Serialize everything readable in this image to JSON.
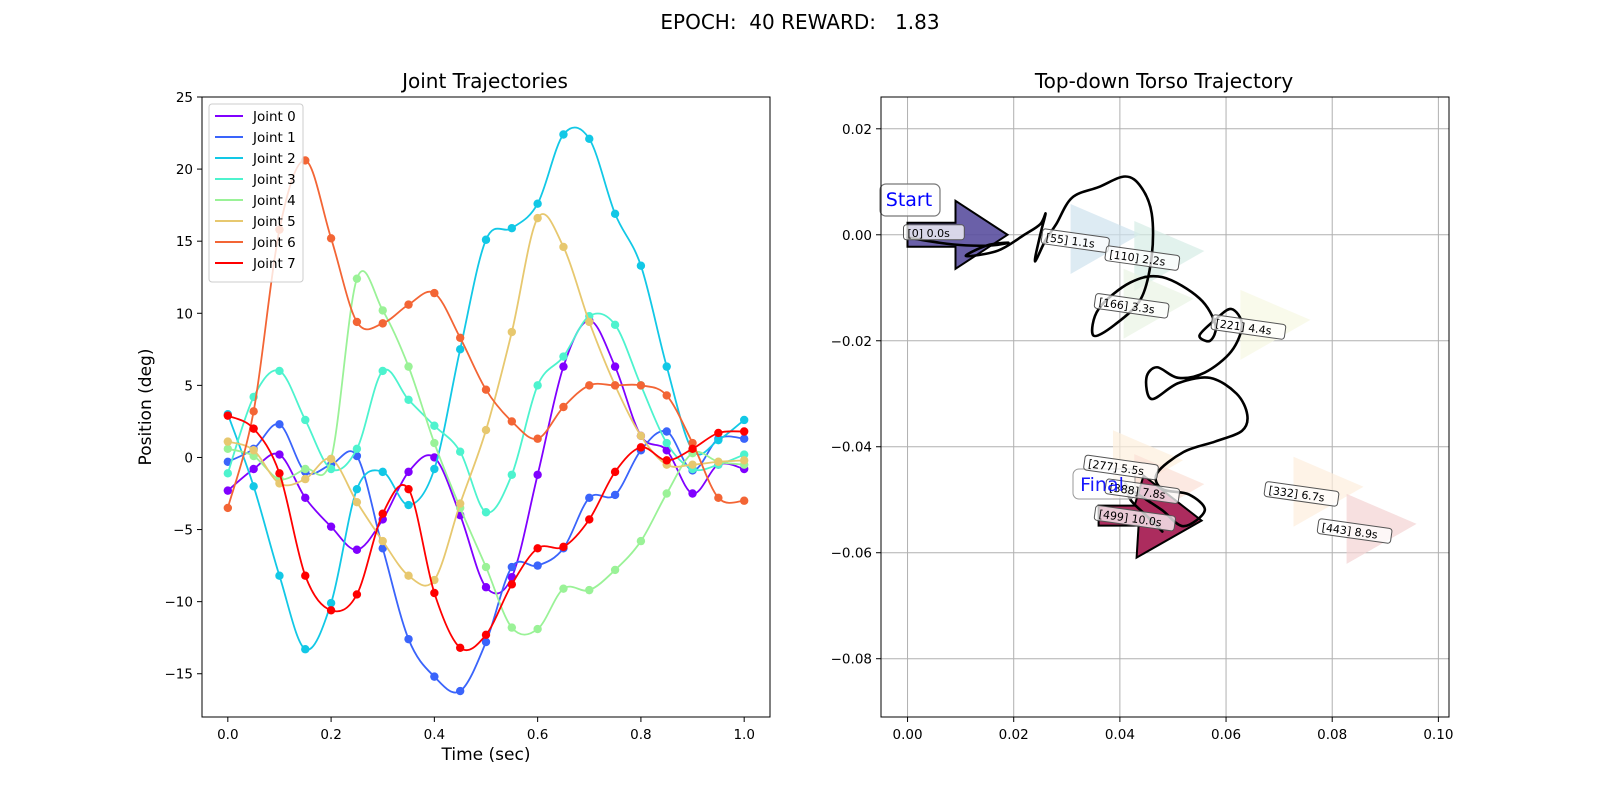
{
  "figure_title": "EPOCH:  40 REWARD:   1.83",
  "chart_data": [
    {
      "type": "line",
      "title": "Joint Trajectories",
      "xlabel": "Time (sec)",
      "ylabel": "Position (deg)",
      "xlim": [
        -0.05,
        1.05
      ],
      "ylim": [
        -18,
        25
      ],
      "x_ticks": [
        0.0,
        0.2,
        0.4,
        0.6,
        0.8,
        1.0
      ],
      "x_tick_labels": [
        "0.0",
        "0.2",
        "0.4",
        "0.6",
        "0.8",
        "1.0"
      ],
      "y_ticks": [
        -15,
        -10,
        -5,
        0,
        5,
        10,
        15,
        20,
        25
      ],
      "y_tick_labels": [
        "−15",
        "−10",
        "−5",
        "0",
        "5",
        "10",
        "15",
        "20",
        "25"
      ],
      "grid": false,
      "legend_position": "upper-left",
      "markers_x": [
        0.0,
        0.05,
        0.1,
        0.15,
        0.2,
        0.25,
        0.3,
        0.35,
        0.4,
        0.45,
        0.5,
        0.55,
        0.6,
        0.65,
        0.7,
        0.75,
        0.8,
        0.85,
        0.9,
        0.95,
        1.0
      ],
      "series": [
        {
          "name": "Joint 0",
          "color": "#8000ff",
          "values": [
            -2.3,
            -0.8,
            0.2,
            -2.8,
            -4.8,
            -6.4,
            -4.3,
            -1.0,
            0.0,
            -4.0,
            -9.0,
            -8.3,
            -1.2,
            6.3,
            9.5,
            6.3,
            1.5,
            0.5,
            -2.5,
            -0.5,
            -0.8
          ]
        },
        {
          "name": "Joint 1",
          "color": "#3a64fb",
          "values": [
            -0.3,
            0.6,
            2.3,
            -1.0,
            -0.5,
            0.1,
            -6.3,
            -12.6,
            -15.2,
            -16.2,
            -12.8,
            -7.6,
            -7.5,
            -6.3,
            -2.8,
            -2.6,
            0.5,
            1.8,
            -0.9,
            1.3,
            1.3
          ]
        },
        {
          "name": "Joint 2",
          "color": "#12c8e6",
          "values": [
            3.0,
            -2.0,
            -8.2,
            -13.3,
            -10.1,
            -2.2,
            -1.0,
            -3.3,
            -0.8,
            7.5,
            15.1,
            15.9,
            17.6,
            22.4,
            22.1,
            16.9,
            13.3,
            6.3,
            0.5,
            1.2,
            2.6
          ]
        },
        {
          "name": "Joint 3",
          "color": "#4df3ce",
          "values": [
            -1.1,
            4.2,
            6.0,
            2.6,
            -0.8,
            0.6,
            6.0,
            4.0,
            2.2,
            0.4,
            -3.8,
            -1.2,
            5.0,
            7.0,
            9.8,
            9.2,
            5.0,
            1.0,
            -0.8,
            -0.5,
            0.2
          ]
        },
        {
          "name": "Joint 4",
          "color": "#9af297",
          "values": [
            0.6,
            0.1,
            -1.5,
            -0.8,
            -0.1,
            12.4,
            10.2,
            6.3,
            1.0,
            -3.5,
            -7.6,
            -11.8,
            -11.9,
            -9.1,
            -9.2,
            -7.8,
            -5.8,
            -2.5,
            0.3,
            -0.3,
            -0.5
          ]
        },
        {
          "name": "Joint 5",
          "color": "#e7c86f",
          "values": [
            1.1,
            0.5,
            -1.8,
            -1.5,
            -0.1,
            -3.1,
            -5.8,
            -8.2,
            -8.5,
            -3.2,
            1.9,
            8.7,
            16.6,
            14.6,
            9.4,
            5.0,
            1.5,
            -0.5,
            -0.5,
            -0.3,
            -0.2
          ]
        },
        {
          "name": "Joint 6",
          "color": "#f36535",
          "values": [
            -3.5,
            3.2,
            15.8,
            20.6,
            15.2,
            9.4,
            9.3,
            10.6,
            11.4,
            8.3,
            4.7,
            2.5,
            1.3,
            3.5,
            5.0,
            5.0,
            5.0,
            4.3,
            1.0,
            -2.8,
            -3.0
          ]
        },
        {
          "name": "Joint 7",
          "color": "#ff0000",
          "values": [
            2.9,
            2.0,
            -1.1,
            -8.2,
            -10.6,
            -9.5,
            -3.9,
            -2.2,
            -9.4,
            -13.2,
            -12.3,
            -8.8,
            -6.3,
            -6.2,
            -4.3,
            -1.0,
            0.7,
            -0.2,
            0.6,
            1.7,
            1.8
          ]
        }
      ]
    },
    {
      "type": "line",
      "title": "Top-down Torso Trajectory",
      "xlabel": "",
      "ylabel": "",
      "xlim": [
        -0.005,
        0.102
      ],
      "ylim": [
        -0.091,
        0.026
      ],
      "x_ticks": [
        0.0,
        0.02,
        0.04,
        0.06,
        0.08,
        0.1
      ],
      "x_tick_labels": [
        "0.00",
        "0.02",
        "0.04",
        "0.06",
        "0.08",
        "0.10"
      ],
      "y_ticks": [
        0.02,
        0.0,
        -0.02,
        -0.04,
        -0.06,
        -0.08
      ],
      "y_tick_labels": [
        "0.02",
        "0.00",
        "−0.02",
        "−0.04",
        "−0.06",
        "−0.08"
      ],
      "grid": true,
      "path": [
        [
          0.0,
          -0.0005
        ],
        [
          0.006,
          -0.0015
        ],
        [
          0.011,
          -0.002
        ],
        [
          0.016,
          -0.002
        ],
        [
          0.019,
          -0.0015
        ],
        [
          0.015,
          -0.002
        ],
        [
          0.011,
          -0.004
        ],
        [
          0.017,
          -0.003
        ],
        [
          0.022,
          0.0
        ],
        [
          0.025,
          0.002
        ],
        [
          0.026,
          0.004
        ],
        [
          0.025,
          0.0
        ],
        [
          0.024,
          -0.005
        ],
        [
          0.026,
          -0.001
        ],
        [
          0.028,
          0.002
        ],
        [
          0.031,
          0.007
        ],
        [
          0.036,
          0.009
        ],
        [
          0.041,
          0.011
        ],
        [
          0.044,
          0.009
        ],
        [
          0.046,
          0.004
        ],
        [
          0.046,
          -0.004
        ],
        [
          0.044,
          -0.012
        ],
        [
          0.039,
          -0.017
        ],
        [
          0.035,
          -0.019
        ],
        [
          0.036,
          -0.014
        ],
        [
          0.042,
          -0.009
        ],
        [
          0.048,
          -0.008
        ],
        [
          0.055,
          -0.012
        ],
        [
          0.058,
          -0.017
        ],
        [
          0.057,
          -0.02
        ],
        [
          0.055,
          -0.019
        ],
        [
          0.058,
          -0.016
        ],
        [
          0.061,
          -0.014
        ],
        [
          0.063,
          -0.017
        ],
        [
          0.061,
          -0.022
        ],
        [
          0.056,
          -0.026
        ],
        [
          0.051,
          -0.027
        ],
        [
          0.047,
          -0.025
        ],
        [
          0.045,
          -0.027
        ],
        [
          0.046,
          -0.031
        ],
        [
          0.051,
          -0.028
        ],
        [
          0.057,
          -0.027
        ],
        [
          0.062,
          -0.03
        ],
        [
          0.064,
          -0.034
        ],
        [
          0.063,
          -0.037
        ],
        [
          0.058,
          -0.039
        ],
        [
          0.052,
          -0.041
        ],
        [
          0.047,
          -0.045
        ],
        [
          0.048,
          -0.048
        ],
        [
          0.053,
          -0.049
        ],
        [
          0.056,
          -0.052
        ],
        [
          0.052,
          -0.055
        ],
        [
          0.048,
          -0.052
        ],
        [
          0.045,
          -0.05
        ],
        [
          0.042,
          -0.048
        ],
        [
          0.041,
          -0.047
        ],
        [
          0.042,
          -0.05
        ],
        [
          0.045,
          -0.053
        ],
        [
          0.048,
          -0.056
        ]
      ],
      "frame_markers": [
        {
          "label": "[0] 0.0s",
          "x": 0.0,
          "y": 0.0,
          "heading_deg": 0,
          "color": "#5a4f9e"
        },
        {
          "label": "[55] 1.1s",
          "x": 0.026,
          "y": -0.0008,
          "heading_deg": 0,
          "color": "#cfe3ee"
        },
        {
          "label": "[110] 2.2s",
          "x": 0.038,
          "y": -0.004,
          "heading_deg": 0,
          "color": "#d6ece6"
        },
        {
          "label": "[166] 3.3s",
          "x": 0.036,
          "y": -0.013,
          "heading_deg": 0,
          "color": "#e9f3e4"
        },
        {
          "label": "[221] 4.4s",
          "x": 0.058,
          "y": -0.017,
          "heading_deg": 0,
          "color": "#f6f8e2"
        },
        {
          "label": "[277] 5.5s",
          "x": 0.034,
          "y": -0.0435,
          "heading_deg": 0,
          "color": "#fdf0dd"
        },
        {
          "label": "[332] 6.7s",
          "x": 0.068,
          "y": -0.0485,
          "heading_deg": 0,
          "color": "#fdeedd"
        },
        {
          "label": "[388] 7.8s",
          "x": 0.038,
          "y": -0.048,
          "heading_deg": 0,
          "color": "#fbe0d5"
        },
        {
          "label": "[443] 8.9s",
          "x": 0.078,
          "y": -0.0555,
          "heading_deg": 0,
          "color": "#f4d3d3"
        },
        {
          "label": "[499] 10.0s",
          "x": 0.036,
          "y": -0.053,
          "heading_deg": 0,
          "color": "#a3154d"
        }
      ],
      "start_label": "Start",
      "final_label": "Final"
    }
  ]
}
